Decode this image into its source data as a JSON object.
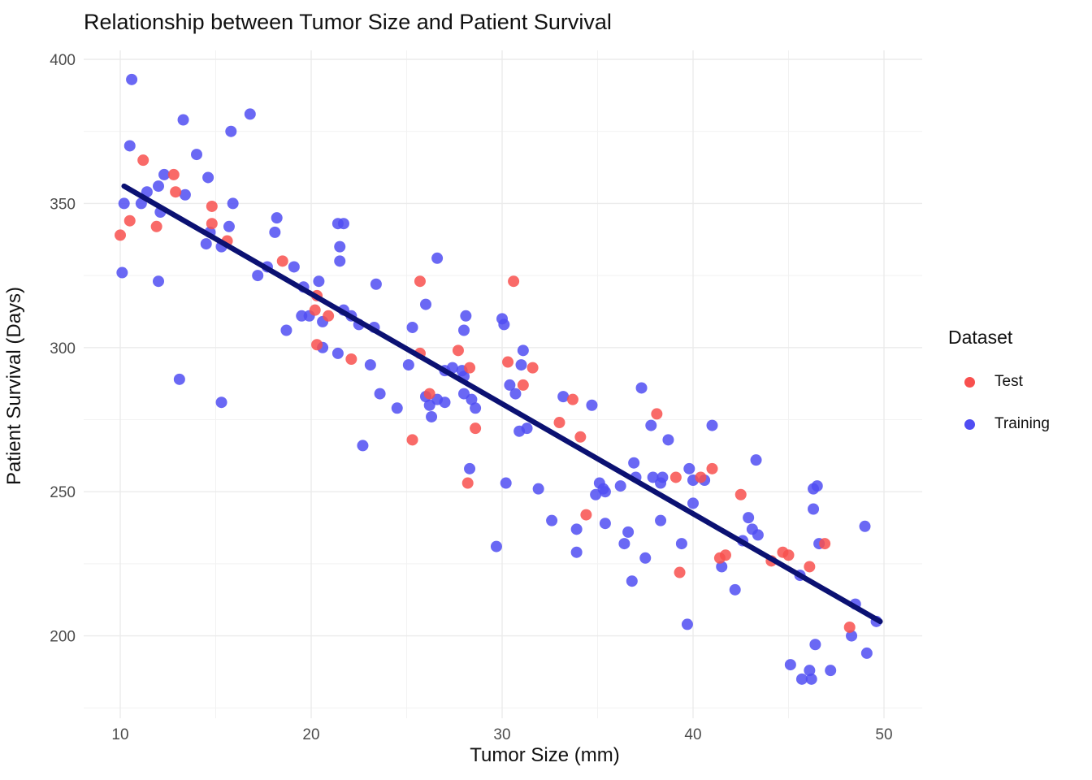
{
  "chart_data": {
    "type": "scatter",
    "title": "Relationship between Tumor Size and Patient Survival",
    "xlabel": "Tumor Size (mm)",
    "ylabel": "Patient Survival (Days)",
    "x_ticks": [
      10,
      20,
      30,
      40,
      50
    ],
    "y_ticks": [
      200,
      250,
      300,
      350,
      400
    ],
    "x_minor_gridlines": [
      15,
      25,
      35,
      45
    ],
    "y_minor_gridlines": [
      175,
      225,
      275,
      325,
      375
    ],
    "xlim": [
      8.1,
      52.0
    ],
    "ylim": [
      171,
      404
    ],
    "grid": "on",
    "colors": {
      "test": "#F8504E",
      "training": "#504DF2",
      "trend_line": "#0B1172",
      "major_grid": "#EBEBEB",
      "minor_grid": "#F2F2F2",
      "tick_text": "#4D4D4D"
    },
    "legend": {
      "title": "Dataset",
      "position": "right",
      "items": [
        {
          "label": "Test",
          "color": "#F8504E"
        },
        {
          "label": "Training",
          "color": "#504DF2"
        }
      ]
    },
    "trend_line": {
      "x1": 10.2,
      "y1": 356,
      "x2": 49.8,
      "y2": 205
    },
    "series": [
      {
        "name": "Test",
        "color": "#F8504E",
        "points": [
          [
            11.2,
            365
          ],
          [
            12.8,
            360
          ],
          [
            12.9,
            354
          ],
          [
            10.5,
            344
          ],
          [
            11.9,
            342
          ],
          [
            10.0,
            339
          ],
          [
            14.8,
            349
          ],
          [
            14.8,
            343
          ],
          [
            15.6,
            337
          ],
          [
            18.5,
            330
          ],
          [
            20.3,
            318
          ],
          [
            20.2,
            313
          ],
          [
            20.9,
            311
          ],
          [
            20.3,
            301
          ],
          [
            22.1,
            296
          ],
          [
            25.7,
            323
          ],
          [
            30.6,
            323
          ],
          [
            28.3,
            293
          ],
          [
            30.3,
            295
          ],
          [
            31.6,
            293
          ],
          [
            27.7,
            299
          ],
          [
            25.7,
            298
          ],
          [
            31.1,
            287
          ],
          [
            26.2,
            284
          ],
          [
            33.7,
            282
          ],
          [
            28.6,
            272
          ],
          [
            25.3,
            268
          ],
          [
            33.0,
            274
          ],
          [
            34.1,
            269
          ],
          [
            28.2,
            253
          ],
          [
            38.1,
            277
          ],
          [
            34.4,
            242
          ],
          [
            39.1,
            255
          ],
          [
            41.0,
            258
          ],
          [
            40.4,
            255
          ],
          [
            42.5,
            249
          ],
          [
            39.3,
            222
          ],
          [
            41.4,
            227
          ],
          [
            41.7,
            228
          ],
          [
            44.1,
            226
          ],
          [
            44.7,
            229
          ],
          [
            45.0,
            228
          ],
          [
            46.1,
            224
          ],
          [
            46.9,
            232
          ],
          [
            48.2,
            203
          ]
        ]
      },
      {
        "name": "Training",
        "color": "#504DF2",
        "points": [
          [
            10.6,
            393
          ],
          [
            10.5,
            370
          ],
          [
            16.8,
            381
          ],
          [
            13.3,
            379
          ],
          [
            15.8,
            375
          ],
          [
            14.0,
            367
          ],
          [
            12.3,
            360
          ],
          [
            14.6,
            359
          ],
          [
            11.4,
            354
          ],
          [
            12.0,
            356
          ],
          [
            13.4,
            353
          ],
          [
            10.2,
            350
          ],
          [
            11.1,
            350
          ],
          [
            15.9,
            350
          ],
          [
            12.1,
            347
          ],
          [
            14.7,
            340
          ],
          [
            15.7,
            342
          ],
          [
            14.5,
            336
          ],
          [
            15.3,
            335
          ],
          [
            10.1,
            326
          ],
          [
            12.0,
            323
          ],
          [
            13.1,
            289
          ],
          [
            15.3,
            281
          ],
          [
            17.2,
            325
          ],
          [
            17.7,
            328
          ],
          [
            18.2,
            345
          ],
          [
            18.1,
            340
          ],
          [
            19.1,
            328
          ],
          [
            19.6,
            321
          ],
          [
            20.4,
            323
          ],
          [
            21.4,
            343
          ],
          [
            21.7,
            343
          ],
          [
            21.5,
            335
          ],
          [
            21.5,
            330
          ],
          [
            19.5,
            311
          ],
          [
            19.9,
            311
          ],
          [
            20.6,
            309
          ],
          [
            21.7,
            313
          ],
          [
            22.1,
            311
          ],
          [
            22.5,
            308
          ],
          [
            23.3,
            307
          ],
          [
            18.7,
            306
          ],
          [
            20.6,
            300
          ],
          [
            21.4,
            298
          ],
          [
            22.7,
            266
          ],
          [
            26.6,
            331
          ],
          [
            23.4,
            322
          ],
          [
            26.0,
            315
          ],
          [
            28.1,
            311
          ],
          [
            30.0,
            310
          ],
          [
            30.1,
            308
          ],
          [
            25.3,
            307
          ],
          [
            28.0,
            306
          ],
          [
            23.1,
            294
          ],
          [
            25.1,
            294
          ],
          [
            27.0,
            292
          ],
          [
            27.4,
            293
          ],
          [
            27.9,
            292
          ],
          [
            28.0,
            290
          ],
          [
            31.1,
            299
          ],
          [
            31.0,
            294
          ],
          [
            30.4,
            287
          ],
          [
            30.7,
            284
          ],
          [
            23.6,
            284
          ],
          [
            24.5,
            279
          ],
          [
            26.0,
            283
          ],
          [
            26.6,
            282
          ],
          [
            26.2,
            280
          ],
          [
            27.0,
            281
          ],
          [
            26.3,
            276
          ],
          [
            28.0,
            284
          ],
          [
            28.4,
            282
          ],
          [
            28.6,
            279
          ],
          [
            33.2,
            283
          ],
          [
            34.7,
            280
          ],
          [
            30.9,
            271
          ],
          [
            31.3,
            272
          ],
          [
            28.3,
            258
          ],
          [
            30.2,
            253
          ],
          [
            31.9,
            251
          ],
          [
            35.1,
            253
          ],
          [
            35.3,
            251
          ],
          [
            34.9,
            249
          ],
          [
            35.4,
            250
          ],
          [
            36.2,
            252
          ],
          [
            37.3,
            286
          ],
          [
            37.8,
            273
          ],
          [
            36.9,
            260
          ],
          [
            37.0,
            255
          ],
          [
            37.9,
            255
          ],
          [
            32.6,
            240
          ],
          [
            33.9,
            237
          ],
          [
            35.4,
            239
          ],
          [
            36.6,
            236
          ],
          [
            36.4,
            232
          ],
          [
            29.7,
            231
          ],
          [
            33.9,
            229
          ],
          [
            37.5,
            227
          ],
          [
            36.8,
            219
          ],
          [
            38.7,
            268
          ],
          [
            41.0,
            273
          ],
          [
            43.3,
            261
          ],
          [
            39.8,
            258
          ],
          [
            40.0,
            254
          ],
          [
            40.6,
            254
          ],
          [
            38.4,
            255
          ],
          [
            38.3,
            253
          ],
          [
            40.0,
            246
          ],
          [
            42.9,
            241
          ],
          [
            43.1,
            237
          ],
          [
            43.4,
            235
          ],
          [
            42.6,
            233
          ],
          [
            38.3,
            240
          ],
          [
            39.4,
            232
          ],
          [
            42.2,
            216
          ],
          [
            39.7,
            204
          ],
          [
            41.5,
            224
          ],
          [
            45.6,
            221
          ],
          [
            46.6,
            232
          ],
          [
            46.3,
            251
          ],
          [
            46.5,
            252
          ],
          [
            46.3,
            244
          ],
          [
            49.0,
            238
          ],
          [
            46.4,
            197
          ],
          [
            45.1,
            190
          ],
          [
            45.7,
            185
          ],
          [
            46.2,
            185
          ],
          [
            46.1,
            188
          ],
          [
            47.2,
            188
          ],
          [
            49.1,
            194
          ],
          [
            49.6,
            205
          ],
          [
            48.3,
            200
          ],
          [
            48.5,
            211
          ]
        ]
      }
    ]
  }
}
